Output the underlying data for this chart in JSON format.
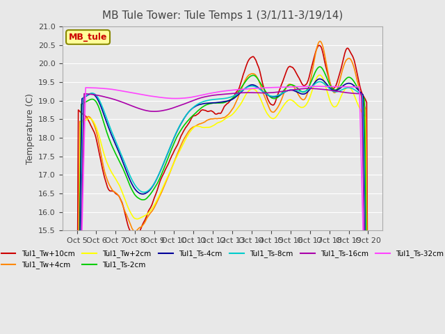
{
  "title": "MB Tule Tower: Tule Temps 1 (3/1/11-3/19/14)",
  "ylabel": "Temperature (C)",
  "ylim": [
    15.5,
    21.0
  ],
  "yticks": [
    15.5,
    16.0,
    16.5,
    17.0,
    17.5,
    18.0,
    18.5,
    19.0,
    19.5,
    20.0,
    20.5,
    21.0
  ],
  "xlabel": "",
  "background_color": "#e8e8e8",
  "plot_bg_color": "#e8e8e8",
  "grid_color": "#ffffff",
  "series": [
    {
      "label": "Tul1_Tw+10cm",
      "color": "#cc0000",
      "lw": 1.2
    },
    {
      "label": "Tul1_Tw+4cm",
      "color": "#ff8800",
      "lw": 1.2
    },
    {
      "label": "Tul1_Tw+2cm",
      "color": "#ffff00",
      "lw": 1.2
    },
    {
      "label": "Tul1_Ts-2cm",
      "color": "#00cc00",
      "lw": 1.2
    },
    {
      "label": "Tul1_Ts-4cm",
      "color": "#000099",
      "lw": 1.2
    },
    {
      "label": "Tul1_Ts-8cm",
      "color": "#00cccc",
      "lw": 1.2
    },
    {
      "label": "Tul1_Ts-16cm",
      "color": "#aa00aa",
      "lw": 1.2
    },
    {
      "label": "Tul1_Ts-32cm",
      "color": "#ff44ff",
      "lw": 1.2
    }
  ],
  "n_points": 400,
  "x_tick_labels": [
    "Oct 5",
    "Oct 6",
    "Oct 7",
    "Oct 8",
    "Oct 9",
    "Oct 10",
    "Oct 11",
    "Oct 12",
    "Oct 13",
    "Oct 14",
    "Oct 15",
    "Oct 16",
    "Oct 17",
    "Oct 18",
    "Oct 19",
    "Oct 20"
  ],
  "legend_box_color": "#ffff99",
  "legend_box_edge": "#888800",
  "legend_text": "MB_tule",
  "legend_text_color": "#cc0000"
}
